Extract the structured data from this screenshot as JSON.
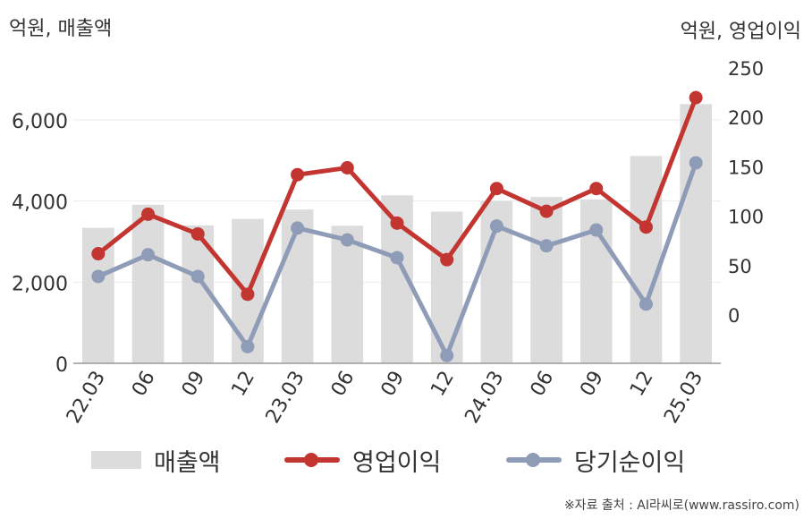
{
  "units": {
    "left": "억원, 매출액",
    "right": "억원, 영업이익"
  },
  "source": "※자료 출처 : AI라씨로(www.rassiro.com)",
  "legend": {
    "revenue": "매출액",
    "operating": "영업이익",
    "net": "당기순이익"
  },
  "colors": {
    "revenue": "#dcdcdc",
    "operating": "#c23531",
    "net": "#8f9cb8",
    "grid": "#ebebeb",
    "axis": "#999999"
  },
  "chart_data": {
    "type": "bar+line",
    "categories": [
      "22.03",
      "06",
      "09",
      "12",
      "23.03",
      "06",
      "09",
      "12",
      "24.03",
      "06",
      "09",
      "12",
      "25.03"
    ],
    "series": [
      {
        "name": "매출액",
        "type": "bar",
        "axis": "left",
        "values": [
          3340,
          3910,
          3400,
          3560,
          3790,
          3390,
          4140,
          3740,
          4000,
          4100,
          4040,
          5110,
          6390
        ]
      },
      {
        "name": "영업이익",
        "type": "line",
        "axis": "right",
        "values": [
          62,
          102,
          82,
          21,
          142,
          149,
          93,
          56,
          128,
          105,
          128,
          89,
          220
        ]
      },
      {
        "name": "당기순이익",
        "type": "line",
        "axis": "right",
        "values": [
          39,
          61,
          39,
          -32,
          88,
          76,
          58,
          -41,
          90,
          70,
          86,
          11,
          154
        ]
      }
    ],
    "y_left": {
      "ticks": [
        0,
        2000,
        4000,
        6000
      ],
      "tick_labels": [
        "0",
        "2,000",
        "4,000",
        "6,000"
      ]
    },
    "y_right": {
      "ticks": [
        0,
        50,
        100,
        150,
        200,
        250
      ],
      "tick_labels": [
        "0",
        "50",
        "100",
        "150",
        "200",
        "250"
      ]
    },
    "grid": true,
    "legend_position": "bottom"
  }
}
